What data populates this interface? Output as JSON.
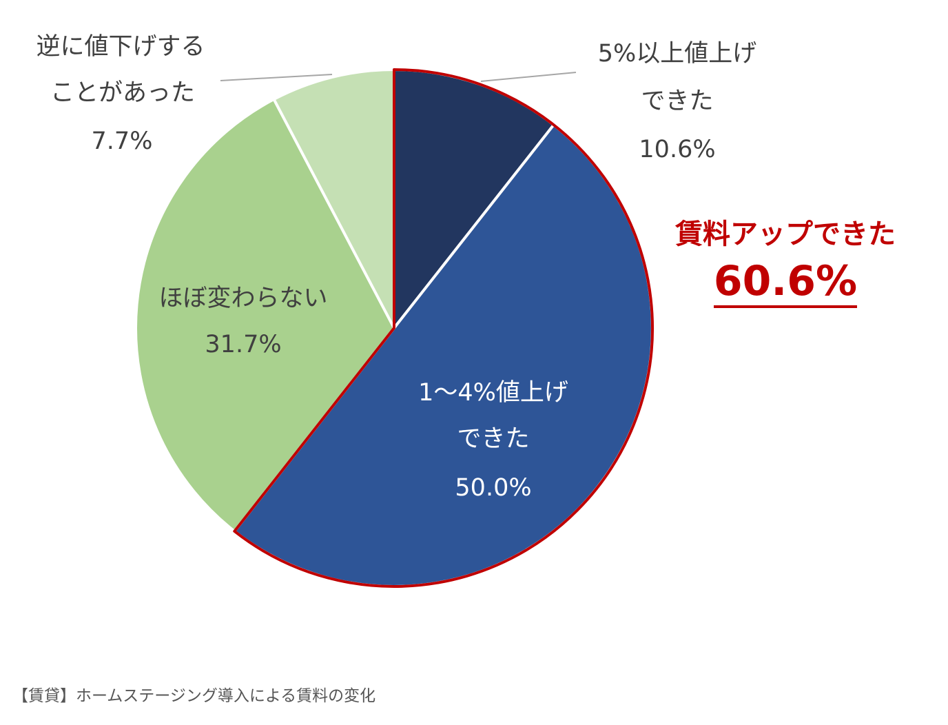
{
  "chart_data": {
    "type": "pie",
    "title": "",
    "start": "top",
    "direction": "clockwise",
    "slices": [
      {
        "label_lines": [
          "5%以上値上げ",
          "できた"
        ],
        "value": 10.6,
        "value_label": "10.6%",
        "color": "#22365F"
      },
      {
        "label_lines": [
          "1〜4%値上げ",
          "できた"
        ],
        "value": 50.0,
        "value_label": "50.0%",
        "color": "#2E5597"
      },
      {
        "label_lines": [
          "ほぼ変わらない"
        ],
        "value": 31.7,
        "value_label": "31.7%",
        "color": "#A9D18E"
      },
      {
        "label_lines": [
          "逆に値下げする",
          "ことがあった"
        ],
        "value": 7.7,
        "value_label": "7.7%",
        "color": "#C5E0B4"
      }
    ],
    "highlight": {
      "label": "賃料アップできた",
      "value": 60.6,
      "value_label": "60.6%",
      "color": "#C00000",
      "slices": [
        0,
        1
      ]
    }
  },
  "caption": "【賃貸】ホームステージング導入による賃料の変化"
}
